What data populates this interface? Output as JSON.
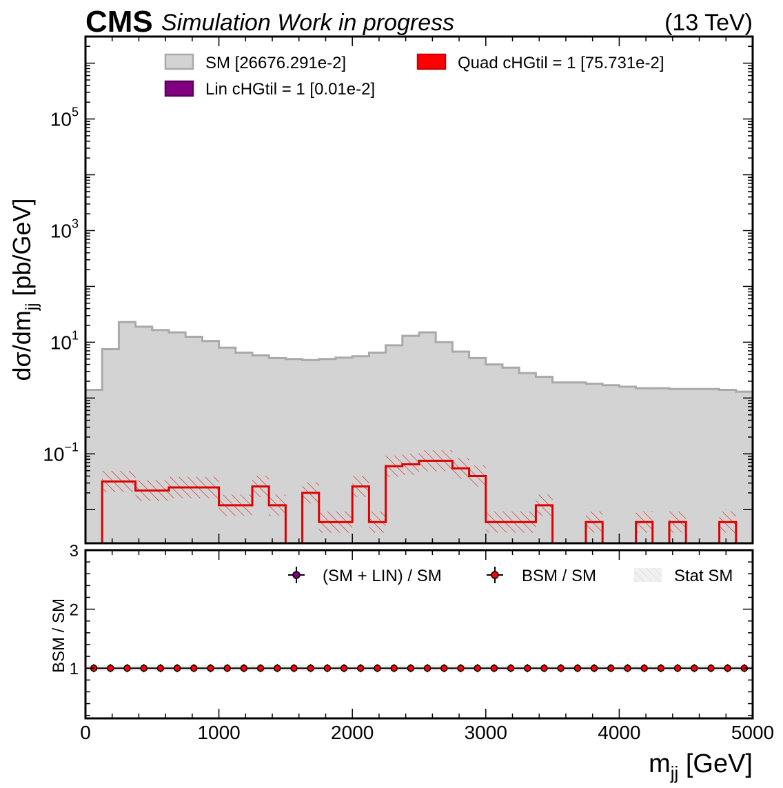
{
  "header": {
    "cms": "CMS",
    "subtitle": "Simulation Work in progress",
    "energy": "(13 TeV)"
  },
  "main_axes": {
    "ylabel_main": "dσ/dm",
    "ylabel_sub": "jj",
    "ylabel_tail": " [pb/GeV]",
    "yticks": [
      {
        "base": "10",
        "exp": "−1",
        "value": 0.1
      },
      {
        "base": "10",
        "exp": "1",
        "value": 10
      },
      {
        "base": "10",
        "exp": "3",
        "value": 1000
      },
      {
        "base": "10",
        "exp": "5",
        "value": 100000
      }
    ]
  },
  "legend_main": [
    {
      "label": "SM [26676.291e-2]",
      "color": "#d3d3d3",
      "edge": "#a9a9a9"
    },
    {
      "label": "Quad cHGtil = 1 [75.731e-2]",
      "color": "#ff0000",
      "edge": "#cc0000"
    },
    {
      "label": "Lin cHGtil = 1 [0.01e-2]",
      "color": "#800080",
      "edge": "#5a005a"
    }
  ],
  "legend_ratio": [
    {
      "label": "(SM + LIN) / SM",
      "color": "#800080"
    },
    {
      "label": "BSM / SM",
      "color": "#ff0000"
    },
    {
      "label": "Stat SM",
      "color": "#e6e6e6"
    }
  ],
  "ratio_axes": {
    "ylabel": "BSM / SM",
    "yticks": [
      "1",
      "2",
      "3"
    ]
  },
  "x_axis": {
    "label_main": "m",
    "label_sub": "jj",
    "label_tail": " [GeV]",
    "ticks": [
      "0",
      "1000",
      "2000",
      "3000",
      "4000",
      "5000"
    ]
  },
  "chart_data": {
    "type": "histogram",
    "x_range": [
      0,
      5000
    ],
    "bin_width": 125,
    "y_scale": "log",
    "y_range": [
      0.0025,
      3000000
    ],
    "ratio_y_range": [
      0.15,
      3
    ],
    "series": [
      {
        "name": "SM [26676.291e-2]",
        "values": [
          1.4,
          7.5,
          23,
          19,
          16.5,
          15,
          12.5,
          10.5,
          8,
          6.5,
          5.8,
          5.2,
          5.0,
          4.8,
          5.0,
          5.3,
          5.6,
          6.5,
          8.8,
          13,
          15,
          10,
          6.8,
          5.2,
          4.0,
          3.5,
          2.8,
          2.4,
          1.9,
          1.9,
          1.8,
          1.7,
          1.6,
          1.5,
          1.5,
          1.45,
          1.45,
          1.45,
          1.4,
          1.3
        ]
      },
      {
        "name": "Quad cHGtil = 1 [75.731e-2]",
        "values": [
          0,
          0.032,
          0.032,
          0.022,
          0.022,
          0.025,
          0.025,
          0.025,
          0.012,
          0.012,
          0.026,
          0.012,
          0,
          0.02,
          0.006,
          0.006,
          0.026,
          0.006,
          0.06,
          0.065,
          0.075,
          0.075,
          0.055,
          0.04,
          0.006,
          0.006,
          0.006,
          0.012,
          0,
          0,
          0.006,
          0,
          0,
          0.006,
          0,
          0.006,
          0,
          0,
          0.006,
          0
        ]
      },
      {
        "name": "Lin cHGtil = 1 [0.01e-2]",
        "values": [
          0,
          0,
          0,
          0,
          0,
          0,
          0,
          0,
          0,
          0,
          0,
          0,
          0,
          0,
          0,
          0,
          0,
          0,
          0,
          0,
          0,
          0,
          0,
          0,
          0,
          0,
          0,
          0,
          0,
          0,
          0,
          0,
          0,
          0,
          0,
          0,
          0,
          0,
          0,
          0
        ]
      },
      {
        "name": "BSM / SM",
        "values": [
          1.0,
          1.0,
          1.0,
          1.0,
          1.0,
          1.0,
          1.0,
          1.0,
          1.0,
          1.0,
          1.0,
          1.0,
          1.0,
          1.0,
          1.0,
          1.0,
          1.0,
          1.0,
          1.0,
          1.0,
          1.0,
          1.0,
          1.0,
          1.0,
          1.0,
          1.0,
          1.0,
          1.0,
          1.0,
          1.0,
          1.0,
          1.0,
          1.0,
          1.0,
          1.0,
          1.0,
          1.0,
          1.0,
          1.0,
          1.0
        ]
      }
    ]
  }
}
